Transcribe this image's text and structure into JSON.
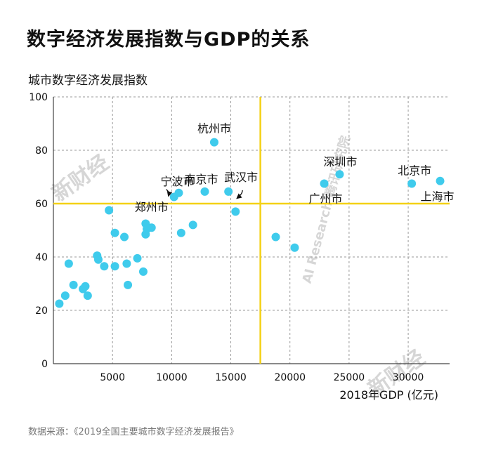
{
  "title": "数字经济发展指数与GDP的关系",
  "source": "数据来源：《2019全国主要城市数字经济发展报告》",
  "watermark": "新财经",
  "watermark_research": "AI Research 腾讯研究院",
  "colors": {
    "dot": "#3fcbec",
    "threshold": "#f4d116",
    "grid": "#9a9a9a"
  },
  "chart_data": {
    "type": "scatter",
    "title": "数字经济发展指数与GDP的关系",
    "xlabel": "2018年GDP (亿元)",
    "ylabel": "城市数字经济发展指数",
    "xlim": [
      0,
      33500
    ],
    "ylim": [
      0,
      100
    ],
    "xticks": [
      5000,
      10000,
      15000,
      20000,
      25000,
      30000
    ],
    "yticks": [
      0,
      20,
      40,
      60,
      80,
      100
    ],
    "x_threshold": 17500,
    "y_threshold": 60,
    "grid": true,
    "points": [
      {
        "x": 500,
        "y": 22.5
      },
      {
        "x": 1000,
        "y": 25.5
      },
      {
        "x": 1300,
        "y": 37.5
      },
      {
        "x": 1700,
        "y": 29.5
      },
      {
        "x": 2500,
        "y": 28
      },
      {
        "x": 2700,
        "y": 29
      },
      {
        "x": 2900,
        "y": 25.5
      },
      {
        "x": 3700,
        "y": 40.5
      },
      {
        "x": 3800,
        "y": 39
      },
      {
        "x": 4300,
        "y": 36.5
      },
      {
        "x": 4700,
        "y": 57.5
      },
      {
        "x": 5200,
        "y": 36.5
      },
      {
        "x": 5200,
        "y": 49
      },
      {
        "x": 6000,
        "y": 47.5
      },
      {
        "x": 6200,
        "y": 37.5
      },
      {
        "x": 6300,
        "y": 29.5
      },
      {
        "x": 7100,
        "y": 39.5
      },
      {
        "x": 7600,
        "y": 34.5
      },
      {
        "x": 7800,
        "y": 52.5
      },
      {
        "x": 7800,
        "y": 48.5
      },
      {
        "x": 7900,
        "y": 50.5
      },
      {
        "x": 8300,
        "y": 51
      },
      {
        "x": 10200,
        "y": 62.5,
        "label": "郑州市"
      },
      {
        "x": 10600,
        "y": 64,
        "label": "宁波市"
      },
      {
        "x": 10800,
        "y": 49
      },
      {
        "x": 11800,
        "y": 52
      },
      {
        "x": 12800,
        "y": 64.5,
        "label": "南京市"
      },
      {
        "x": 13600,
        "y": 83,
        "label": "杭州市"
      },
      {
        "x": 14800,
        "y": 64.5,
        "label": "武汉市"
      },
      {
        "x": 15400,
        "y": 57
      },
      {
        "x": 18800,
        "y": 47.5
      },
      {
        "x": 20400,
        "y": 43.5
      },
      {
        "x": 22900,
        "y": 67.5,
        "label": "广州市"
      },
      {
        "x": 24200,
        "y": 71,
        "label": "深圳市"
      },
      {
        "x": 30300,
        "y": 67.5,
        "label": "北京市"
      },
      {
        "x": 32700,
        "y": 68.5,
        "label": "上海市"
      }
    ]
  }
}
